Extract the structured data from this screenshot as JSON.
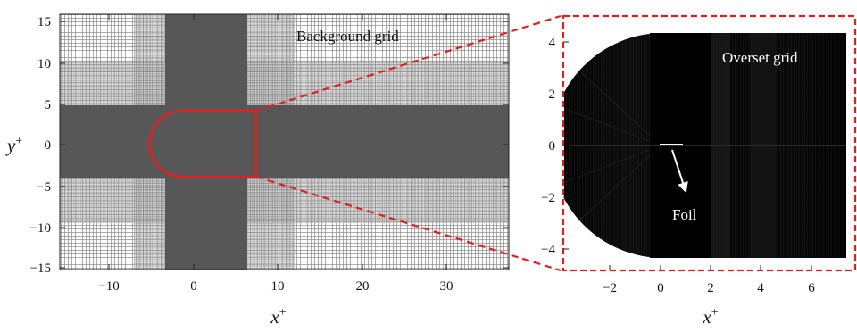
{
  "left_panel": {
    "annotation": "Background grid",
    "xlabel": "x",
    "xlabel_sup": "+",
    "ylabel": "y",
    "ylabel_sup": "+",
    "x_ticks": [
      "−10",
      "0",
      "10",
      "20",
      "30"
    ],
    "y_ticks": [
      "15",
      "10",
      "5",
      "0",
      "−5",
      "−10",
      "−15"
    ]
  },
  "right_panel": {
    "annotation": "Overset grid",
    "foil_label": "Foil",
    "xlabel": "x",
    "xlabel_sup": "+",
    "x_ticks": [
      "−2",
      "0",
      "2",
      "4",
      "6"
    ],
    "y_ticks": [
      "4",
      "2",
      "0",
      "−2",
      "−4"
    ]
  },
  "colors": {
    "highlight": "#e02020",
    "dense_grid": "#555555",
    "overset_fill": "#000000"
  }
}
